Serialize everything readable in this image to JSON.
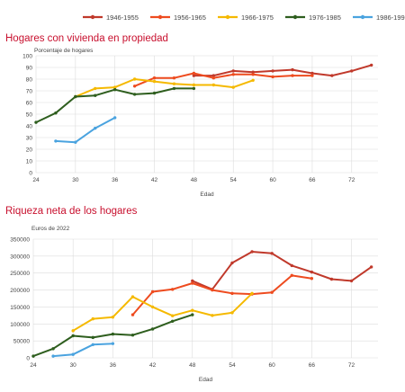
{
  "legend": [
    {
      "label": "1946-1955",
      "color": "#c0392b"
    },
    {
      "label": "1956-1965",
      "color": "#ee4b1f"
    },
    {
      "label": "1966-1975",
      "color": "#f5b900"
    },
    {
      "label": "1976-1985",
      "color": "#2e5e1e"
    },
    {
      "label": "1986-1995",
      "color": "#4aa3df"
    }
  ],
  "chart_data": [
    {
      "type": "line",
      "title": "Hogares con vivienda en propiedad",
      "ylabel": "Porcentaje de hogares",
      "xlabel": "Edad",
      "xlim": [
        24,
        76
      ],
      "ylim": [
        0,
        100
      ],
      "xticks": [
        24,
        30,
        36,
        42,
        48,
        54,
        60,
        66,
        72
      ],
      "yticks": [
        0,
        10,
        20,
        30,
        40,
        50,
        60,
        70,
        80,
        90,
        100
      ],
      "grid": true,
      "series": [
        {
          "name": "1946-1955",
          "x": [
            48,
            51,
            54,
            57,
            60,
            63,
            66,
            69,
            72,
            75
          ],
          "y": [
            83,
            83,
            87,
            86,
            87,
            88,
            85,
            83,
            87,
            92
          ]
        },
        {
          "name": "1956-1965",
          "x": [
            39,
            42,
            45,
            48,
            51,
            54,
            57,
            60,
            63,
            66
          ],
          "y": [
            74,
            81,
            81,
            85,
            81,
            84,
            84,
            82,
            83,
            83
          ]
        },
        {
          "name": "1966-1975",
          "x": [
            30,
            33,
            36,
            39,
            42,
            45,
            48,
            51,
            54,
            57
          ],
          "y": [
            65,
            72,
            73,
            80,
            78,
            76,
            75,
            75,
            73,
            79
          ]
        },
        {
          "name": "1976-1985",
          "x": [
            24,
            27,
            30,
            33,
            36,
            39,
            42,
            45,
            48
          ],
          "y": [
            43,
            51,
            65,
            66,
            71,
            67,
            68,
            72,
            72
          ]
        },
        {
          "name": "1986-1995",
          "x": [
            27,
            30,
            33,
            36
          ],
          "y": [
            27,
            26,
            38,
            47
          ]
        }
      ]
    },
    {
      "type": "line",
      "title": "Riqueza neta de los hogares",
      "ylabel": "Euros de 2022",
      "xlabel": "Edad",
      "xlim": [
        24,
        76
      ],
      "ylim": [
        0,
        350000
      ],
      "xticks": [
        24,
        30,
        36,
        42,
        48,
        54,
        60,
        66,
        72
      ],
      "yticks": [
        0,
        50000,
        100000,
        150000,
        200000,
        250000,
        300000,
        350000
      ],
      "grid": true,
      "series": [
        {
          "name": "1946-1955",
          "x": [
            48,
            51,
            54,
            57,
            60,
            63,
            66,
            69,
            72,
            75
          ],
          "y": [
            227000,
            202000,
            280000,
            313000,
            308000,
            272000,
            253000,
            232000,
            227000,
            268000
          ]
        },
        {
          "name": "1956-1965",
          "x": [
            39,
            42,
            45,
            48,
            51,
            54,
            57,
            60,
            63,
            66
          ],
          "y": [
            127000,
            195000,
            202000,
            220000,
            200000,
            190000,
            188000,
            193000,
            243000,
            234000
          ]
        },
        {
          "name": "1966-1975",
          "x": [
            30,
            33,
            36,
            39,
            42,
            45,
            48,
            51,
            54,
            57
          ],
          "y": [
            80000,
            115000,
            120000,
            180000,
            150000,
            124000,
            140000,
            125000,
            133000,
            190000
          ]
        },
        {
          "name": "1976-1985",
          "x": [
            24,
            27,
            30,
            33,
            36,
            39,
            42,
            45,
            48
          ],
          "y": [
            5000,
            27000,
            65000,
            60000,
            70000,
            67000,
            85000,
            108000,
            127000
          ]
        },
        {
          "name": "1986-1995",
          "x": [
            27,
            30,
            33,
            36
          ],
          "y": [
            5000,
            10000,
            39000,
            42000
          ]
        }
      ]
    }
  ]
}
